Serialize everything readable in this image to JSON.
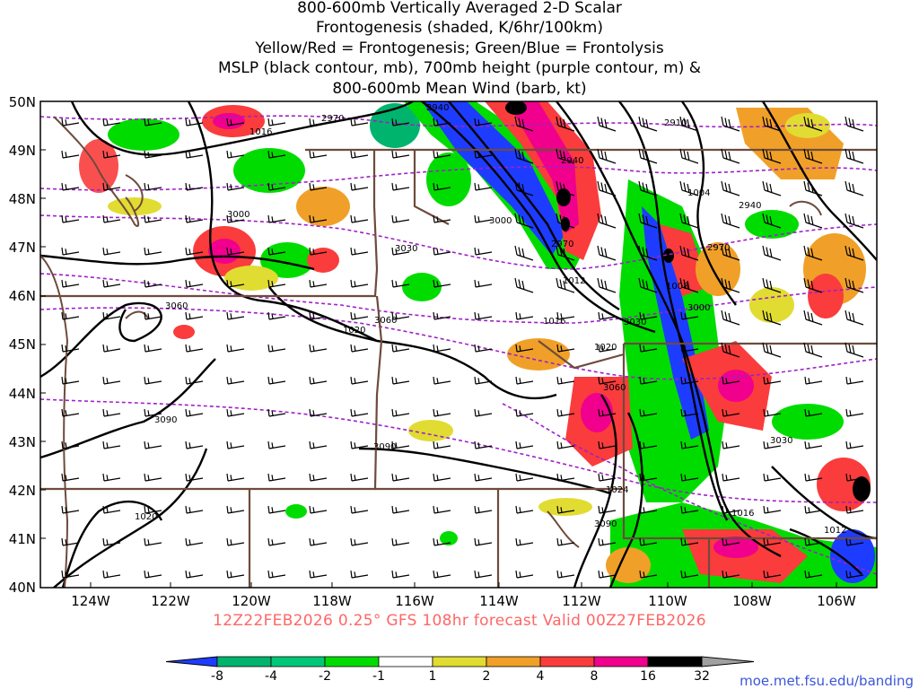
{
  "title_lines": [
    "800-600mb Vertically Averaged 2-D Scalar",
    "Frontogenesis (shaded, K/6hr/100km)",
    "Yellow/Red = Frontogenesis;  Green/Blue = Frontolysis",
    "MSLP (black contour, mb), 700mb height (purple contour, m) &",
    "800-600mb Mean Wind (barb, kt)"
  ],
  "valid_text": "12Z22FEB2026 0.25° GFS 108hr forecast Valid 00Z27FEB2026",
  "credit": "moe.met.fsu.edu/banding",
  "lat_labels": [
    "50N",
    "49N",
    "48N",
    "47N",
    "46N",
    "45N",
    "44N",
    "43N",
    "42N",
    "41N",
    "40N"
  ],
  "lon_labels": [
    "124W",
    "122W",
    "120W",
    "118W",
    "116W",
    "114W",
    "112W",
    "110W",
    "108W",
    "106W"
  ],
  "colorbar": {
    "labels": [
      "-8",
      "-4",
      "-2",
      "-1",
      "1",
      "2",
      "4",
      "8",
      "16",
      "32"
    ],
    "colors": [
      "#1e3cff",
      "#00b46e",
      "#00c878",
      "#00dc00",
      "#ffffff",
      "#e1dc32",
      "#f0a028",
      "#fa3c3c",
      "#f0008c",
      "#000000",
      "#a0a0a0"
    ]
  },
  "mslp_labels": [
    "1016",
    "1004",
    "1012",
    "1008",
    "1016",
    "1020",
    "1020",
    "1024",
    "1020",
    "1016",
    "1012"
  ],
  "height_labels": [
    "2970",
    "2940",
    "2910",
    "2940",
    "2940",
    "3000",
    "3030",
    "2970",
    "2970",
    "3000",
    "3060",
    "3060",
    "3030",
    "3000",
    "3090",
    "3060",
    "3030",
    "3090",
    "3090"
  ],
  "colors": {
    "mslp": "#000000",
    "height": "#a020c8",
    "borders": "#6e4b3c",
    "valid": "#ff6666"
  }
}
